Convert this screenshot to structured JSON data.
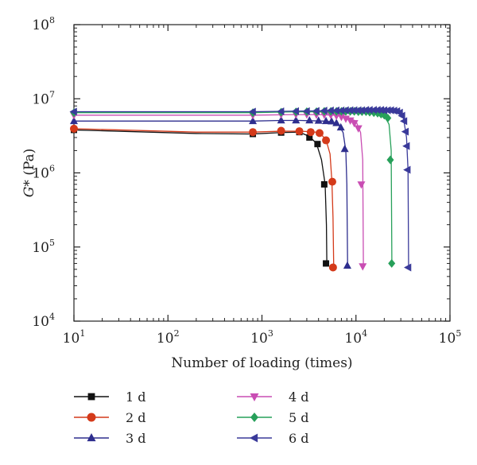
{
  "chart_data": {
    "type": "scatter",
    "xlabel": "Number of loading (times)",
    "ylabel": "G* (Pa)",
    "ylabel_italic_part": "G",
    "ylabel_rest": "* (Pa)",
    "xscale": "log",
    "yscale": "log",
    "xlim": [
      10,
      100000
    ],
    "ylim": [
      10000,
      100000000
    ],
    "x_ticks": [
      {
        "base": "10",
        "exp": "1",
        "value": 10
      },
      {
        "base": "10",
        "exp": "2",
        "value": 100
      },
      {
        "base": "10",
        "exp": "3",
        "value": 1000
      },
      {
        "base": "10",
        "exp": "4",
        "value": 10000
      },
      {
        "base": "10",
        "exp": "5",
        "value": 100000
      }
    ],
    "y_ticks": [
      {
        "base": "10",
        "exp": "4",
        "value": 10000
      },
      {
        "base": "10",
        "exp": "5",
        "value": 100000
      },
      {
        "base": "10",
        "exp": "6",
        "value": 1000000
      },
      {
        "base": "10",
        "exp": "7",
        "value": 10000000
      },
      {
        "base": "10",
        "exp": "8",
        "value": 100000000
      }
    ],
    "grid": false,
    "legend_position": "bottom",
    "series": [
      {
        "name": "1 d",
        "color": "#111111",
        "marker": "square",
        "line": [
          [
            10,
            3800000
          ],
          [
            200,
            3400000
          ],
          [
            800,
            3350000
          ],
          [
            1600,
            3500000
          ],
          [
            2500,
            3550000
          ],
          [
            3200,
            3100000
          ],
          [
            3800,
            2500000
          ],
          [
            4300,
            1500000
          ],
          [
            4700,
            700000
          ],
          [
            4850,
            200000
          ],
          [
            4900,
            60000
          ]
        ],
        "points": [
          [
            10,
            3800000
          ],
          [
            800,
            3350000
          ],
          [
            1600,
            3500000
          ],
          [
            2500,
            3550000
          ],
          [
            3200,
            3000000
          ],
          [
            3900,
            2450000
          ],
          [
            4600,
            700000
          ],
          [
            4800,
            60000
          ]
        ]
      },
      {
        "name": "2 d",
        "color": "#d43a1a",
        "marker": "circle",
        "line": [
          [
            10,
            3950000
          ],
          [
            200,
            3550000
          ],
          [
            800,
            3550000
          ],
          [
            1600,
            3650000
          ],
          [
            2500,
            3650000
          ],
          [
            3300,
            3600000
          ],
          [
            4100,
            3500000
          ],
          [
            4800,
            2800000
          ],
          [
            5300,
            1800000
          ],
          [
            5550,
            760000
          ],
          [
            5700,
            250000
          ],
          [
            5800,
            53000
          ]
        ],
        "points": [
          [
            10,
            3950000
          ],
          [
            800,
            3550000
          ],
          [
            1600,
            3700000
          ],
          [
            2500,
            3650000
          ],
          [
            3300,
            3550000
          ],
          [
            4100,
            3450000
          ],
          [
            4800,
            2750000
          ],
          [
            5600,
            760000
          ],
          [
            5700,
            53000
          ]
        ]
      },
      {
        "name": "3 d",
        "color": "#2e2e8e",
        "marker": "triangle-up",
        "line": [
          [
            10,
            5000000
          ],
          [
            800,
            5000000
          ],
          [
            1600,
            5100000
          ],
          [
            2500,
            5100000
          ],
          [
            3500,
            5050000
          ],
          [
            4500,
            5000000
          ],
          [
            5500,
            4900000
          ],
          [
            6500,
            4500000
          ],
          [
            7300,
            3500000
          ],
          [
            7800,
            2000000
          ],
          [
            8000,
            700000
          ],
          [
            8150,
            56000
          ]
        ],
        "points": [
          [
            10,
            5000000
          ],
          [
            800,
            5000000
          ],
          [
            1600,
            5100000
          ],
          [
            2300,
            5100000
          ],
          [
            3200,
            5100000
          ],
          [
            4000,
            5050000
          ],
          [
            4800,
            5000000
          ],
          [
            5500,
            4950000
          ],
          [
            6200,
            4700000
          ],
          [
            6900,
            4100000
          ],
          [
            7600,
            2100000
          ],
          [
            8100,
            56000
          ]
        ]
      },
      {
        "name": "4 d",
        "color": "#c94db3",
        "marker": "triangle-down",
        "line": [
          [
            10,
            6000000
          ],
          [
            800,
            6000000
          ],
          [
            2000,
            6100000
          ],
          [
            4000,
            6100000
          ],
          [
            6000,
            6000000
          ],
          [
            8000,
            5700000
          ],
          [
            10000,
            5000000
          ],
          [
            11200,
            3500000
          ],
          [
            11800,
            1500000
          ],
          [
            12000,
            55000
          ]
        ],
        "points": [
          [
            10,
            6000000
          ],
          [
            800,
            6000000
          ],
          [
            1600,
            6150000
          ],
          [
            2300,
            6150000
          ],
          [
            3000,
            6150000
          ],
          [
            3800,
            6100000
          ],
          [
            4600,
            6100000
          ],
          [
            5400,
            6050000
          ],
          [
            6200,
            5900000
          ],
          [
            7000,
            5700000
          ],
          [
            7800,
            5400000
          ],
          [
            8700,
            5100000
          ],
          [
            9600,
            4700000
          ],
          [
            10600,
            4000000
          ],
          [
            11400,
            700000
          ],
          [
            11800,
            55000
          ]
        ]
      },
      {
        "name": "5 d",
        "color": "#27a05a",
        "marker": "diamond",
        "line": [
          [
            10,
            6500000
          ],
          [
            800,
            6500000
          ],
          [
            2000,
            6650000
          ],
          [
            5000,
            6700000
          ],
          [
            10000,
            6700000
          ],
          [
            15000,
            6600000
          ],
          [
            20000,
            6000000
          ],
          [
            22500,
            4500000
          ],
          [
            23700,
            2000000
          ],
          [
            24100,
            60000
          ]
        ],
        "points": [
          [
            10,
            6500000
          ],
          [
            800,
            6500000
          ],
          [
            1600,
            6600000
          ],
          [
            2300,
            6650000
          ],
          [
            3000,
            6700000
          ],
          [
            3800,
            6700000
          ],
          [
            4600,
            6750000
          ],
          [
            5400,
            6750000
          ],
          [
            6200,
            6750000
          ],
          [
            7000,
            6750000
          ],
          [
            7800,
            6750000
          ],
          [
            8700,
            6750000
          ],
          [
            9600,
            6750000
          ],
          [
            10600,
            6700000
          ],
          [
            11600,
            6700000
          ],
          [
            12800,
            6700000
          ],
          [
            14000,
            6600000
          ],
          [
            15500,
            6500000
          ],
          [
            17000,
            6400000
          ],
          [
            18500,
            6200000
          ],
          [
            20000,
            6000000
          ],
          [
            21800,
            5500000
          ],
          [
            23200,
            1500000
          ],
          [
            24000,
            60000
          ]
        ]
      },
      {
        "name": "6 d",
        "color": "#3a3a9a",
        "marker": "triangle-left",
        "line": [
          [
            10,
            6700000
          ],
          [
            800,
            6700000
          ],
          [
            2000,
            6800000
          ],
          [
            5000,
            6900000
          ],
          [
            10000,
            7000000
          ],
          [
            20000,
            7000000
          ],
          [
            28000,
            6700000
          ],
          [
            32000,
            5500000
          ],
          [
            34500,
            3000000
          ],
          [
            35800,
            1100000
          ],
          [
            36300,
            53000
          ]
        ],
        "points": [
          [
            10,
            6700000
          ],
          [
            800,
            6700000
          ],
          [
            1600,
            6750000
          ],
          [
            2300,
            6800000
          ],
          [
            3000,
            6800000
          ],
          [
            3800,
            6850000
          ],
          [
            4600,
            6900000
          ],
          [
            5400,
            6950000
          ],
          [
            6200,
            6950000
          ],
          [
            7000,
            6950000
          ],
          [
            7800,
            7000000
          ],
          [
            8700,
            7000000
          ],
          [
            9600,
            7000000
          ],
          [
            10600,
            7000000
          ],
          [
            11600,
            7000000
          ],
          [
            12800,
            7050000
          ],
          [
            14000,
            7050000
          ],
          [
            15500,
            7050000
          ],
          [
            17000,
            7050000
          ],
          [
            18500,
            7050000
          ],
          [
            20000,
            7000000
          ],
          [
            21800,
            7000000
          ],
          [
            23600,
            7000000
          ],
          [
            25500,
            6900000
          ],
          [
            27400,
            6800000
          ],
          [
            29300,
            6500000
          ],
          [
            31000,
            5900000
          ],
          [
            32600,
            5000000
          ],
          [
            33800,
            3600000
          ],
          [
            34700,
            2300000
          ],
          [
            35400,
            1100000
          ],
          [
            36000,
            53000
          ]
        ]
      }
    ]
  }
}
